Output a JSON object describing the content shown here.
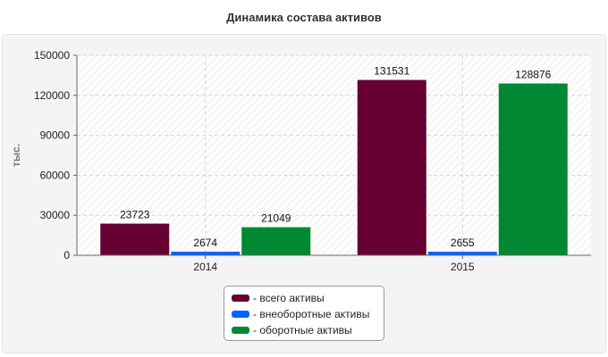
{
  "chart_data": {
    "type": "bar",
    "title": "Динамика состава активов",
    "ylabel": "тыс.",
    "xlabel": "",
    "categories": [
      "2014",
      "2015"
    ],
    "ylim": [
      0,
      150000
    ],
    "yticks": [
      "0",
      "30000",
      "60000",
      "90000",
      "120000",
      "150000"
    ],
    "grid": true,
    "legend_position": "bottom",
    "series": [
      {
        "name": "- всего активы",
        "values": [
          23723,
          131531
        ],
        "color": "#660033"
      },
      {
        "name": "- внеоборотные активы",
        "values": [
          2674,
          2655
        ],
        "color": "#0066ff"
      },
      {
        "name": "- оборотные активы",
        "values": [
          21049,
          128876
        ],
        "color": "#008833"
      }
    ]
  }
}
